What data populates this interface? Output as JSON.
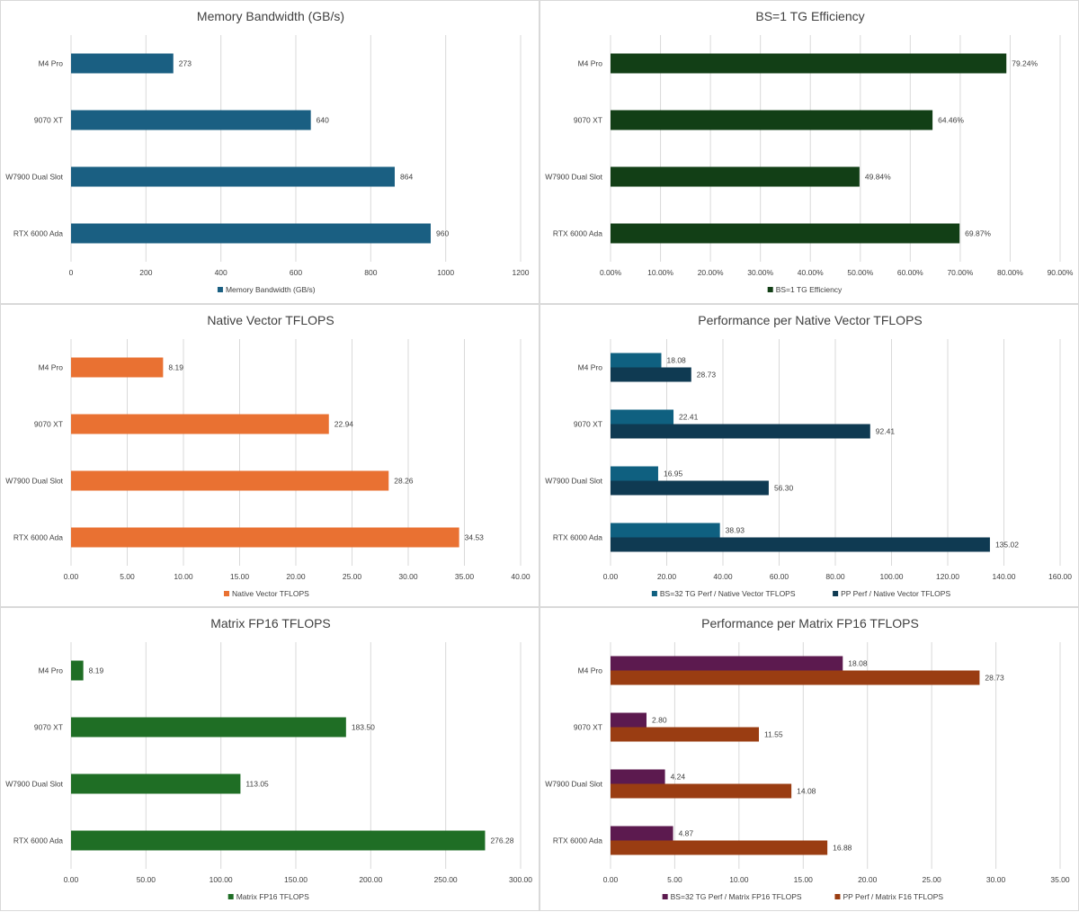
{
  "chart_data": [
    {
      "type": "bar",
      "title": "Memory Bandwidth (GB/s)",
      "categories": [
        "M4 Pro",
        "9070 XT",
        "W7900 Dual Slot",
        "RTX 6000 Ada"
      ],
      "series": [
        {
          "name": "Memory Bandwidth (GB/s)",
          "color": "#1a5f82",
          "values": [
            273,
            640,
            864,
            960
          ],
          "labels": [
            "273",
            "640",
            "864",
            "960"
          ]
        }
      ],
      "xlim": [
        0,
        1200
      ],
      "ticks": [
        0,
        200,
        400,
        600,
        800,
        1000,
        1200
      ],
      "tick_labels": [
        "0",
        "200",
        "400",
        "600",
        "800",
        "1000",
        "1200"
      ],
      "legend": "bottom"
    },
    {
      "type": "bar",
      "title": "BS=1 TG Efficiency",
      "categories": [
        "M4 Pro",
        "9070 XT",
        "W7900 Dual Slot",
        "RTX 6000 Ada"
      ],
      "series": [
        {
          "name": "BS=1 TG Efficiency",
          "color": "#123f16",
          "values": [
            79.24,
            64.46,
            49.84,
            69.87
          ],
          "labels": [
            "79.24%",
            "64.46%",
            "49.84%",
            "69.87%"
          ]
        }
      ],
      "xlim": [
        0,
        90
      ],
      "ticks": [
        0,
        10,
        20,
        30,
        40,
        50,
        60,
        70,
        80,
        90
      ],
      "tick_labels": [
        "0.00%",
        "10.00%",
        "20.00%",
        "30.00%",
        "40.00%",
        "50.00%",
        "60.00%",
        "70.00%",
        "80.00%",
        "90.00%"
      ],
      "legend": "bottom"
    },
    {
      "type": "bar",
      "title": "Native Vector TFLOPS",
      "categories": [
        "M4 Pro",
        "9070 XT",
        "W7900 Dual Slot",
        "RTX 6000 Ada"
      ],
      "series": [
        {
          "name": "Native Vector TFLOPS",
          "color": "#e97132",
          "values": [
            8.19,
            22.94,
            28.26,
            34.53
          ],
          "labels": [
            "8.19",
            "22.94",
            "28.26",
            "34.53"
          ]
        }
      ],
      "xlim": [
        0,
        40
      ],
      "ticks": [
        0,
        5,
        10,
        15,
        20,
        25,
        30,
        35,
        40
      ],
      "tick_labels": [
        "0.00",
        "5.00",
        "10.00",
        "15.00",
        "20.00",
        "25.00",
        "30.00",
        "35.00",
        "40.00"
      ],
      "legend": "bottom"
    },
    {
      "type": "bar",
      "title": "Performance per Native Vector TFLOPS",
      "categories": [
        "M4 Pro",
        "9070 XT",
        "W7900 Dual Slot",
        "RTX 6000 Ada"
      ],
      "series": [
        {
          "name": "BS=32 TG Perf / Native Vector TFLOPS",
          "color": "#0f6080",
          "values": [
            18.08,
            22.41,
            16.95,
            38.93
          ],
          "labels": [
            "18.08",
            "22.41",
            "16.95",
            "38.93"
          ]
        },
        {
          "name": "PP Perf / Native Vector TFLOPS",
          "color": "#0f3a52",
          "values": [
            28.73,
            92.41,
            56.3,
            135.02
          ],
          "labels": [
            "28.73",
            "92.41",
            "56.30",
            "135.02"
          ]
        }
      ],
      "xlim": [
        0,
        160
      ],
      "ticks": [
        0,
        20,
        40,
        60,
        80,
        100,
        120,
        140,
        160
      ],
      "tick_labels": [
        "0.00",
        "20.00",
        "40.00",
        "60.00",
        "80.00",
        "100.00",
        "120.00",
        "140.00",
        "160.00"
      ],
      "legend": "bottom"
    },
    {
      "type": "bar",
      "title": "Matrix FP16 TFLOPS",
      "categories": [
        "M4 Pro",
        "9070 XT",
        "W7900 Dual Slot",
        "RTX 6000 Ada"
      ],
      "series": [
        {
          "name": "Matrix FP16 TFLOPS",
          "color": "#1f6e25",
          "values": [
            8.19,
            183.5,
            113.05,
            276.28
          ],
          "labels": [
            "8.19",
            "183.50",
            "113.05",
            "276.28"
          ]
        }
      ],
      "xlim": [
        0,
        300
      ],
      "ticks": [
        0,
        50,
        100,
        150,
        200,
        250,
        300
      ],
      "tick_labels": [
        "0.00",
        "50.00",
        "100.00",
        "150.00",
        "200.00",
        "250.00",
        "300.00"
      ],
      "legend": "bottom"
    },
    {
      "type": "bar",
      "title": "Performance per Matrix FP16 TFLOPS",
      "categories": [
        "M4 Pro",
        "9070 XT",
        "W7900 Dual Slot",
        "RTX 6000 Ada"
      ],
      "series": [
        {
          "name": "BS=32 TG Perf / Matrix FP16 TFLOPS",
          "color": "#5c1a4f",
          "values": [
            18.08,
            2.8,
            4.24,
            4.87
          ],
          "labels": [
            "18.08",
            "2.80",
            "4.24",
            "4.87"
          ]
        },
        {
          "name": "PP Perf / Matrix F16 TFLOPS",
          "color": "#9a3d12",
          "values": [
            28.73,
            11.55,
            14.08,
            16.88
          ],
          "labels": [
            "28.73",
            "11.55",
            "14.08",
            "16.88"
          ]
        }
      ],
      "xlim": [
        0,
        35
      ],
      "ticks": [
        0,
        5,
        10,
        15,
        20,
        25,
        30,
        35
      ],
      "tick_labels": [
        "0.00",
        "5.00",
        "10.00",
        "15.00",
        "20.00",
        "25.00",
        "30.00",
        "35.00"
      ],
      "legend": "bottom"
    }
  ]
}
